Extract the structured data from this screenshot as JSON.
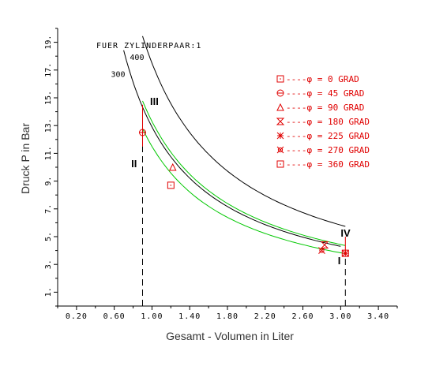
{
  "chart_data": {
    "type": "line",
    "title": "FUER ZYLINDERPAAR:1",
    "xlabel": "Gesamt - Volumen in Liter",
    "ylabel": "Druck P in Bar",
    "xlim": [
      0,
      3.6
    ],
    "ylim": [
      0,
      20
    ],
    "x_ticks": [
      "0.20",
      "0.60",
      "1.00",
      "1.40",
      "1.80",
      "2.20",
      "2.60",
      "3.00",
      "3.40"
    ],
    "x_tick_values": [
      0.2,
      0.6,
      1.0,
      1.4,
      1.8,
      2.2,
      2.6,
      3.0,
      3.4
    ],
    "y_ticks": [
      "1.",
      "3.",
      "5.",
      "7.",
      "9.",
      "11.",
      "13.",
      "15.",
      "17.",
      "19."
    ],
    "y_tick_values": [
      1,
      3,
      5,
      7,
      9,
      11,
      13,
      15,
      17,
      19
    ],
    "grid": false,
    "legend_position": "top-right",
    "colors": {
      "isotherm": "#000000",
      "cycle": "#00c800",
      "marker": "#e00000",
      "axis": "#000000",
      "dashed": "#000000"
    },
    "isotherms": [
      {
        "label": "300",
        "constant": 12.9,
        "x_range": [
          0.7,
          3.0
        ]
      },
      {
        "label": "400",
        "constant": 17.5,
        "x_range": [
          0.9,
          3.05
        ]
      }
    ],
    "cycle_curves": [
      {
        "constant": 13.3,
        "x_range": [
          0.9,
          3.05
        ]
      },
      {
        "constant": 11.5,
        "x_range": [
          0.9,
          3.05
        ]
      }
    ],
    "vlines": [
      {
        "x": 0.9,
        "y_from": 0,
        "y_to": 14.5,
        "upper_from": 11.5
      },
      {
        "x": 3.05,
        "y_from": 0,
        "y_to": 5.0,
        "upper_from": 3.7
      }
    ],
    "corner_labels": [
      {
        "text": "I",
        "x": 2.97,
        "y": 3.0
      },
      {
        "text": "II",
        "x": 0.78,
        "y": 10.0
      },
      {
        "text": "III",
        "x": 0.98,
        "y": 14.5
      },
      {
        "text": "IV",
        "x": 3.0,
        "y": 5.0
      }
    ],
    "markers": [
      {
        "phi": "0",
        "shape": "square",
        "x": 1.2,
        "y": 8.7
      },
      {
        "phi": "45",
        "shape": "circle",
        "x": 0.9,
        "y": 12.5
      },
      {
        "phi": "90",
        "shape": "triangle",
        "x": 1.22,
        "y": 10.0
      },
      {
        "phi": "180",
        "shape": "hourglass",
        "x": 2.83,
        "y": 4.4
      },
      {
        "phi": "225",
        "shape": "asterisk",
        "x": 3.05,
        "y": 3.8
      },
      {
        "phi": "270",
        "shape": "xcircle",
        "x": 2.8,
        "y": 4.0
      },
      {
        "phi": "360",
        "shape": "square",
        "x": 3.05,
        "y": 3.8
      }
    ],
    "legend": [
      {
        "shape": "square",
        "text": "----φ =    0 GRAD"
      },
      {
        "shape": "circle",
        "text": "----φ =   45 GRAD"
      },
      {
        "shape": "triangle",
        "text": "----φ =   90 GRAD"
      },
      {
        "shape": "hourglass",
        "text": "----φ =  180 GRAD"
      },
      {
        "shape": "asterisk",
        "text": "----φ =  225 GRAD"
      },
      {
        "shape": "xcircle",
        "text": "----φ =  270 GRAD"
      },
      {
        "shape": "square",
        "text": "----φ =  360 GRAD"
      }
    ]
  }
}
